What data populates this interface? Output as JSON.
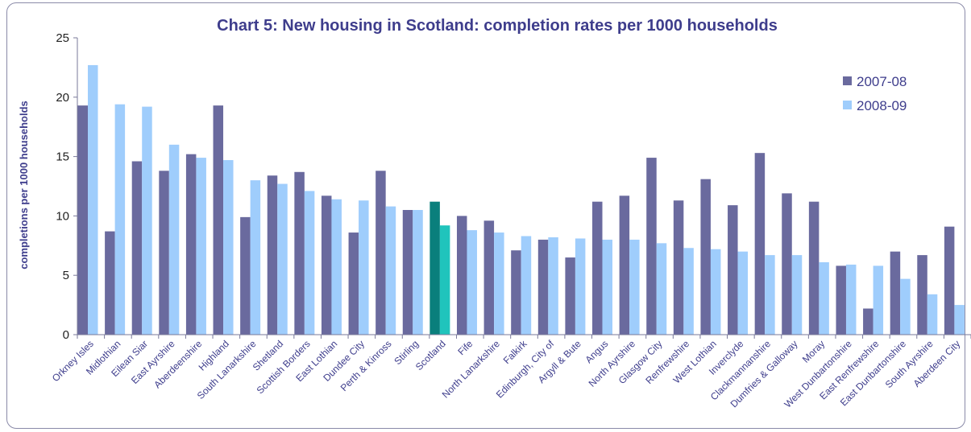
{
  "colors": {
    "series_2007": "#6a6a9e",
    "series_2008": "#9fcdfc",
    "highlight_2007": "#0a7f7c",
    "highlight_2008": "#20c4bc",
    "text": "#3e3d8c",
    "axis": "#7a7a9a"
  },
  "chart_data": {
    "type": "bar",
    "title": "Chart 5: New housing in Scotland: completion rates per 1000 households",
    "xlabel": "",
    "ylabel": "completions per 1000 households",
    "ylim": [
      0,
      25
    ],
    "yticks": [
      0,
      5,
      10,
      15,
      20,
      25
    ],
    "grid": false,
    "legend_position": "top-right",
    "highlight_category": "Scotland",
    "categories": [
      "Orkney Isles",
      "Midlothian",
      "Eilean Siar",
      "East Ayrshire",
      "Aberdeenshire",
      "Highland",
      "South Lanarkshire",
      "Shetland",
      "Scottish Borders",
      "East Lothian",
      "Dundee City",
      "Perth & Kinross",
      "Stirling",
      "Scotland",
      "Fife",
      "North Lanarkshire",
      "Falkirk",
      "Edinburgh, City of",
      "Argyll & Bute",
      "Angus",
      "North Ayrshire",
      "Glasgow City",
      "Renfrewshire",
      "West Lothian",
      "Inverclyde",
      "Clackmannanshire",
      "Dumfries & Galloway",
      "Moray",
      "West Dunbartonshire",
      "East Renfrewshire",
      "East Dunbartonshire",
      "South Ayrshire",
      "Aberdeen City"
    ],
    "series": [
      {
        "name": "2007-08",
        "values": [
          19.3,
          8.7,
          14.6,
          13.8,
          15.2,
          19.3,
          9.9,
          13.4,
          13.7,
          11.7,
          8.6,
          13.8,
          10.5,
          11.2,
          10.0,
          9.6,
          7.1,
          8.0,
          6.5,
          11.2,
          11.7,
          14.9,
          11.3,
          13.1,
          10.9,
          15.3,
          11.9,
          11.2,
          5.8,
          2.2,
          7.0,
          6.7,
          9.1
        ]
      },
      {
        "name": "2008-09",
        "values": [
          22.7,
          19.4,
          19.2,
          16.0,
          14.9,
          14.7,
          13.0,
          12.7,
          12.1,
          11.4,
          11.3,
          10.8,
          10.5,
          9.2,
          8.8,
          8.6,
          8.3,
          8.2,
          8.1,
          8.0,
          8.0,
          7.7,
          7.3,
          7.2,
          7.0,
          6.7,
          6.7,
          6.1,
          5.9,
          5.8,
          4.7,
          3.4,
          2.5
        ]
      }
    ]
  }
}
